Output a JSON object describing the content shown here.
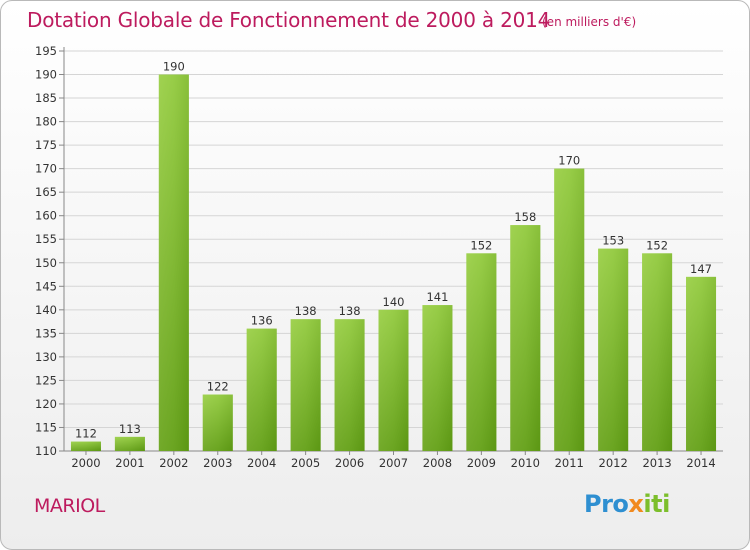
{
  "title": "Dotation Globale de Fonctionnement de 2000 à 2014",
  "subtitle": "(en milliers d'€)",
  "commune": "MARIOL",
  "logo": {
    "part1": "Pro",
    "part2": "x",
    "part3": "iti"
  },
  "colors": {
    "title": "#bd1b5e",
    "bar_top": "#9ed04f",
    "bar_bottom": "#5e9d12",
    "grid": "#d5d5d5"
  },
  "chart_data": {
    "type": "bar",
    "categories": [
      "2000",
      "2001",
      "2002",
      "2003",
      "2004",
      "2005",
      "2006",
      "2007",
      "2008",
      "2009",
      "2010",
      "2011",
      "2012",
      "2013",
      "2014"
    ],
    "values": [
      112,
      113,
      190,
      122,
      136,
      138,
      138,
      140,
      141,
      152,
      158,
      170,
      153,
      152,
      147
    ],
    "title": "Dotation Globale de Fonctionnement de 2000 à 2014",
    "subtitle": "(en milliers d'€)",
    "ylim": [
      110,
      195
    ],
    "yticks": [
      110,
      115,
      120,
      125,
      130,
      135,
      140,
      145,
      150,
      155,
      160,
      165,
      170,
      175,
      180,
      185,
      190,
      195
    ],
    "grid": true,
    "data_labels": true
  }
}
